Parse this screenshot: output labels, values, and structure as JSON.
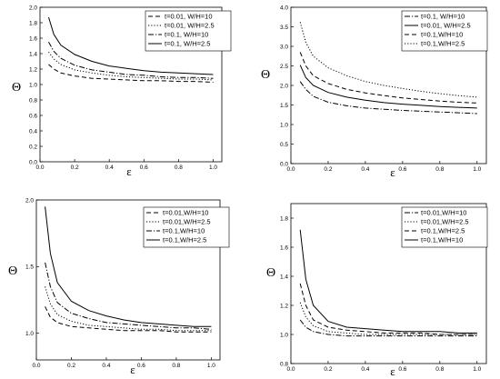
{
  "chart_data": [
    {
      "type": "line",
      "xlabel": "ε",
      "ylabel": "Θ",
      "xlim": [
        0.0,
        1.05
      ],
      "ylim": [
        0.0,
        2.0
      ],
      "xticks": [
        "0.0",
        "0.2",
        "0.4",
        "0.6",
        "0.8",
        "1.0"
      ],
      "yticks": [
        "0.0",
        "0.2",
        "0.4",
        "0.6",
        "0.8",
        "1.0",
        "1.2",
        "1.4",
        "1.6",
        "1.8",
        "2.0"
      ],
      "legend_position": "top-right",
      "series": [
        {
          "name": "t=0.01, W/H=10",
          "style": "dashed",
          "x": [
            0.05,
            0.08,
            0.12,
            0.2,
            0.3,
            0.4,
            0.5,
            0.6,
            0.7,
            0.8,
            0.9,
            1.0
          ],
          "y": [
            1.26,
            1.2,
            1.15,
            1.11,
            1.08,
            1.07,
            1.06,
            1.05,
            1.05,
            1.04,
            1.04,
            1.03
          ]
        },
        {
          "name": "t=0.01, W/H=2.5",
          "style": "dotted",
          "x": [
            0.05,
            0.08,
            0.12,
            0.2,
            0.3,
            0.4,
            0.5,
            0.6,
            0.7,
            0.8,
            0.9,
            1.0
          ],
          "y": [
            1.42,
            1.33,
            1.26,
            1.19,
            1.15,
            1.12,
            1.1,
            1.09,
            1.08,
            1.07,
            1.07,
            1.06
          ]
        },
        {
          "name": "t=0.1, W/H=10",
          "style": "dashdot",
          "x": [
            0.05,
            0.08,
            0.12,
            0.2,
            0.3,
            0.4,
            0.5,
            0.6,
            0.7,
            0.8,
            0.9,
            1.0
          ],
          "y": [
            1.55,
            1.43,
            1.34,
            1.25,
            1.19,
            1.16,
            1.13,
            1.12,
            1.1,
            1.09,
            1.09,
            1.08
          ]
        },
        {
          "name": "t=0.1, W/H=2.5",
          "style": "solid",
          "x": [
            0.05,
            0.08,
            0.12,
            0.2,
            0.3,
            0.4,
            0.5,
            0.6,
            0.7,
            0.8,
            0.9,
            1.0
          ],
          "y": [
            1.87,
            1.65,
            1.51,
            1.39,
            1.3,
            1.24,
            1.21,
            1.18,
            1.16,
            1.15,
            1.14,
            1.13
          ]
        }
      ]
    },
    {
      "type": "line",
      "xlabel": "ε",
      "ylabel": "Θ",
      "xlim": [
        0.0,
        1.05
      ],
      "ylim": [
        0.0,
        4.0
      ],
      "xticks": [
        "0.0",
        "0.2",
        "0.4",
        "0.6",
        "0.8",
        "1.0"
      ],
      "yticks": [
        "0.0",
        "0.5",
        "1.0",
        "1.5",
        "2.0",
        "2.5",
        "3.0",
        "3.5",
        "4.0"
      ],
      "legend_position": "top-right",
      "series": [
        {
          "name": "t=0.1, W/H=10",
          "style": "dashdot",
          "x": [
            0.05,
            0.08,
            0.12,
            0.2,
            0.3,
            0.4,
            0.5,
            0.6,
            0.7,
            0.8,
            0.9,
            1.0
          ],
          "y": [
            2.1,
            1.9,
            1.72,
            1.57,
            1.48,
            1.42,
            1.39,
            1.36,
            1.34,
            1.32,
            1.3,
            1.28
          ]
        },
        {
          "name": "t=0.01, W/H=2.5",
          "style": "solid",
          "x": [
            0.05,
            0.08,
            0.12,
            0.2,
            0.3,
            0.4,
            0.5,
            0.6,
            0.7,
            0.8,
            0.9,
            1.0
          ],
          "y": [
            2.52,
            2.2,
            2.0,
            1.82,
            1.7,
            1.62,
            1.56,
            1.52,
            1.49,
            1.46,
            1.44,
            1.42
          ]
        },
        {
          "name": "t=0.1,W/H=10",
          "style": "dashed",
          "x": [
            0.05,
            0.08,
            0.12,
            0.2,
            0.3,
            0.4,
            0.5,
            0.6,
            0.7,
            0.8,
            0.9,
            1.0
          ],
          "y": [
            2.85,
            2.5,
            2.25,
            2.05,
            1.9,
            1.81,
            1.74,
            1.68,
            1.64,
            1.6,
            1.57,
            1.55
          ]
        },
        {
          "name": "t=0.1,W/H=2.5",
          "style": "dotted",
          "x": [
            0.05,
            0.08,
            0.12,
            0.2,
            0.3,
            0.4,
            0.5,
            0.6,
            0.7,
            0.8,
            0.9,
            1.0
          ],
          "y": [
            3.62,
            3.1,
            2.75,
            2.45,
            2.25,
            2.1,
            2.0,
            1.92,
            1.85,
            1.79,
            1.74,
            1.7
          ]
        }
      ]
    },
    {
      "type": "line",
      "xlabel": "ε",
      "ylabel": "Θ",
      "xlim": [
        0.0,
        1.05
      ],
      "ylim": [
        0.8,
        2.0
      ],
      "xticks": [
        "0.0",
        "0.2",
        "0.4",
        "0.6",
        "0.8",
        "1.0"
      ],
      "yticks": [
        "1.0",
        "1.5",
        "2.0"
      ],
      "legend_position": "top-right",
      "series": [
        {
          "name": "t=0.01,W/H=10",
          "style": "dashed",
          "x": [
            0.05,
            0.08,
            0.12,
            0.2,
            0.3,
            0.4,
            0.5,
            0.6,
            0.7,
            0.8,
            0.9,
            1.0
          ],
          "y": [
            1.2,
            1.12,
            1.08,
            1.05,
            1.04,
            1.03,
            1.02,
            1.02,
            1.02,
            1.01,
            1.01,
            1.01
          ]
        },
        {
          "name": "t=0.01,W/H=2.5",
          "style": "dotted",
          "x": [
            0.05,
            0.08,
            0.12,
            0.2,
            0.3,
            0.4,
            0.5,
            0.6,
            0.7,
            0.8,
            0.9,
            1.0
          ],
          "y": [
            1.35,
            1.22,
            1.14,
            1.09,
            1.06,
            1.05,
            1.04,
            1.03,
            1.03,
            1.02,
            1.02,
            1.02
          ]
        },
        {
          "name": "t=0.1,W/H=10",
          "style": "dashdot",
          "x": [
            0.05,
            0.08,
            0.12,
            0.2,
            0.3,
            0.4,
            0.5,
            0.6,
            0.7,
            0.8,
            0.9,
            1.0
          ],
          "y": [
            1.53,
            1.35,
            1.23,
            1.15,
            1.11,
            1.08,
            1.07,
            1.06,
            1.05,
            1.04,
            1.04,
            1.03
          ]
        },
        {
          "name": "t=0.1,W/H=2.5",
          "style": "solid",
          "x": [
            0.05,
            0.08,
            0.12,
            0.2,
            0.3,
            0.4,
            0.5,
            0.6,
            0.7,
            0.8,
            0.9,
            1.0
          ],
          "y": [
            1.95,
            1.6,
            1.38,
            1.24,
            1.17,
            1.13,
            1.1,
            1.08,
            1.07,
            1.06,
            1.05,
            1.05
          ]
        }
      ]
    },
    {
      "type": "line",
      "xlabel": "ε",
      "ylabel": "Θ",
      "xlim": [
        0.0,
        1.05
      ],
      "ylim": [
        0.8,
        1.9
      ],
      "xticks": [
        "0.0",
        "0.2",
        "0.4",
        "0.6",
        "0.8",
        "1.0"
      ],
      "yticks": [
        "0.8",
        "1.0",
        "1.2",
        "1.4",
        "1.6",
        "1.8"
      ],
      "legend_position": "top-right",
      "series": [
        {
          "name": "t=0.01,W/H=10",
          "style": "dashdot",
          "x": [
            0.05,
            0.08,
            0.12,
            0.2,
            0.3,
            0.4,
            0.5,
            0.6,
            0.7,
            0.8,
            0.9,
            1.0
          ],
          "y": [
            1.1,
            1.05,
            1.02,
            1.0,
            0.99,
            0.99,
            0.99,
            0.99,
            0.99,
            0.99,
            0.99,
            0.99
          ]
        },
        {
          "name": "t=0.01,W/H=2.5",
          "style": "dotted",
          "x": [
            0.05,
            0.08,
            0.12,
            0.2,
            0.3,
            0.4,
            0.5,
            0.6,
            0.7,
            0.8,
            0.9,
            1.0
          ],
          "y": [
            1.22,
            1.12,
            1.06,
            1.02,
            1.01,
            1.0,
            1.0,
            1.0,
            1.0,
            1.0,
            1.0,
            1.0
          ]
        },
        {
          "name": "t=0.1,W/H=2.5",
          "style": "dashed",
          "x": [
            0.05,
            0.08,
            0.12,
            0.2,
            0.3,
            0.4,
            0.5,
            0.6,
            0.7,
            0.8,
            0.9,
            1.0
          ],
          "y": [
            1.35,
            1.2,
            1.1,
            1.05,
            1.03,
            1.02,
            1.01,
            1.01,
            1.01,
            1.0,
            1.0,
            1.0
          ]
        },
        {
          "name": "t=0.1,W/H=10",
          "style": "solid",
          "x": [
            0.05,
            0.08,
            0.12,
            0.2,
            0.3,
            0.4,
            0.5,
            0.6,
            0.7,
            0.8,
            0.9,
            1.0
          ],
          "y": [
            1.72,
            1.38,
            1.2,
            1.09,
            1.05,
            1.04,
            1.03,
            1.02,
            1.02,
            1.02,
            1.01,
            1.01
          ]
        }
      ]
    }
  ]
}
